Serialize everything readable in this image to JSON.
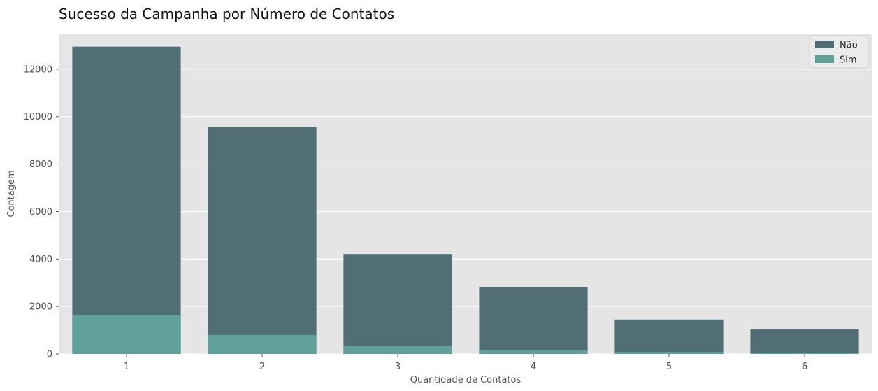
{
  "chart_data": {
    "type": "bar",
    "layout": "overlapped",
    "title": "Sucesso da Campanha por Número de Contatos",
    "xlabel": "Quantidade de Contatos",
    "ylabel": "Contagem",
    "categories": [
      "1",
      "2",
      "3",
      "4",
      "5",
      "6"
    ],
    "series": [
      {
        "name": "Não",
        "color": "#506e73",
        "values": [
          12950,
          9560,
          4210,
          2800,
          1450,
          1030
        ]
      },
      {
        "name": "Sim",
        "color": "#5fa198",
        "values": [
          1650,
          800,
          330,
          150,
          90,
          60
        ]
      }
    ],
    "ylim": [
      0,
      13500
    ],
    "yticks": [
      0,
      2000,
      4000,
      6000,
      8000,
      10000,
      12000
    ],
    "grid": true,
    "legend": "top-right",
    "background": "#e5e5e5"
  }
}
